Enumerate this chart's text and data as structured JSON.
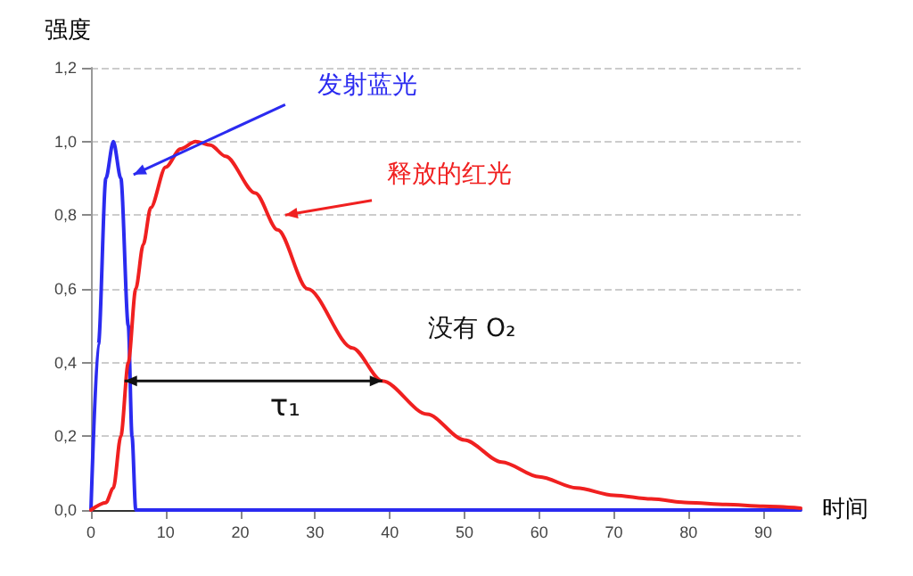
{
  "chart_data": {
    "type": "line",
    "xlabel": "时间",
    "ylabel": "强度",
    "xlim": [
      0,
      95
    ],
    "xticks": [
      0,
      10,
      20,
      30,
      40,
      50,
      60,
      70,
      80,
      90
    ],
    "ylim": [
      0,
      1.2
    ],
    "yticks": [
      {
        "value": 0,
        "label": "0,0"
      },
      {
        "value": 0.2,
        "label": "0,2"
      },
      {
        "value": 0.4,
        "label": "0,4"
      },
      {
        "value": 0.6,
        "label": "0,6"
      },
      {
        "value": 0.8,
        "label": "0,8"
      },
      {
        "value": 1,
        "label": "1,0"
      },
      {
        "value": 1.2,
        "label": "1,2"
      }
    ],
    "grid": "y",
    "marker": "none",
    "line_style": "solid",
    "series": [
      {
        "color": "#2b2bf0",
        "x": [
          0,
          1,
          2,
          3,
          4,
          5,
          5.5,
          6,
          95
        ],
        "values": [
          0,
          0.45,
          0.9,
          1.0,
          0.9,
          0.5,
          0.2,
          0,
          0
        ]
      },
      {
        "color": "#f02020",
        "x": [
          0,
          2,
          3,
          4,
          5,
          6,
          7,
          8,
          10,
          12,
          14,
          16,
          18,
          22,
          25,
          29,
          35,
          39,
          45,
          50,
          55,
          60,
          65,
          70,
          75,
          80,
          85,
          90,
          95
        ],
        "values": [
          0,
          0.02,
          0.06,
          0.2,
          0.4,
          0.6,
          0.72,
          0.82,
          0.93,
          0.98,
          1.0,
          0.99,
          0.96,
          0.86,
          0.76,
          0.6,
          0.44,
          0.35,
          0.26,
          0.19,
          0.13,
          0.09,
          0.06,
          0.04,
          0.03,
          0.02,
          0.015,
          0.01,
          0.005
        ]
      }
    ],
    "annotations": [
      "发射蓝光",
      "释放的红光",
      "没有 O₂",
      "τ₁"
    ]
  }
}
